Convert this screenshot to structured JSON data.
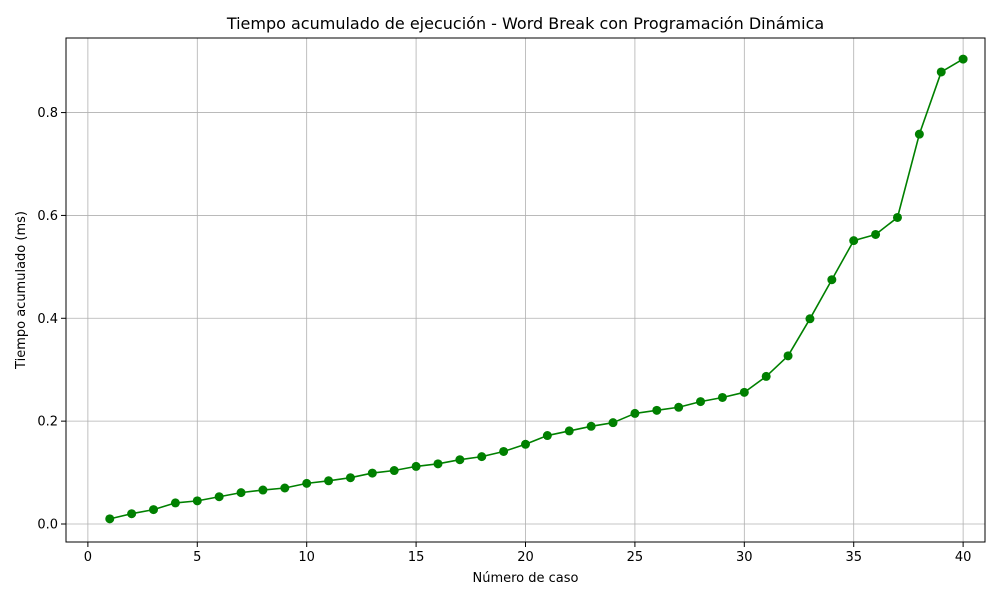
{
  "chart_data": {
    "type": "line",
    "title": "Tiempo acumulado de ejecución - Word Break con Programación Dinámica",
    "xlabel": "Número de caso",
    "ylabel": "Tiempo acumulado (ms)",
    "xlim": [
      -1,
      41
    ],
    "ylim": [
      -0.035,
      0.945
    ],
    "xticks": [
      0,
      5,
      10,
      15,
      20,
      25,
      30,
      35,
      40
    ],
    "xtick_labels": [
      "0",
      "5",
      "10",
      "15",
      "20",
      "25",
      "30",
      "35",
      "40"
    ],
    "yticks": [
      0.0,
      0.2,
      0.4,
      0.6,
      0.8
    ],
    "ytick_labels": [
      "0.0",
      "0.2",
      "0.4",
      "0.6",
      "0.8"
    ],
    "grid": true,
    "marker": "circle",
    "series": [
      {
        "color": "#008000",
        "x": [
          1,
          2,
          3,
          4,
          5,
          6,
          7,
          8,
          9,
          10,
          11,
          12,
          13,
          14,
          15,
          16,
          17,
          18,
          19,
          20,
          21,
          22,
          23,
          24,
          25,
          26,
          27,
          28,
          29,
          30,
          31,
          32,
          33,
          34,
          35,
          36,
          37,
          38,
          39,
          40
        ],
        "values": [
          0.01,
          0.02,
          0.028,
          0.041,
          0.045,
          0.053,
          0.061,
          0.066,
          0.07,
          0.079,
          0.084,
          0.09,
          0.099,
          0.104,
          0.112,
          0.117,
          0.125,
          0.131,
          0.141,
          0.155,
          0.172,
          0.181,
          0.19,
          0.197,
          0.215,
          0.221,
          0.227,
          0.238,
          0.246,
          0.256,
          0.287,
          0.327,
          0.399,
          0.475,
          0.551,
          0.563,
          0.596,
          0.758,
          0.879,
          0.904
        ]
      }
    ]
  }
}
